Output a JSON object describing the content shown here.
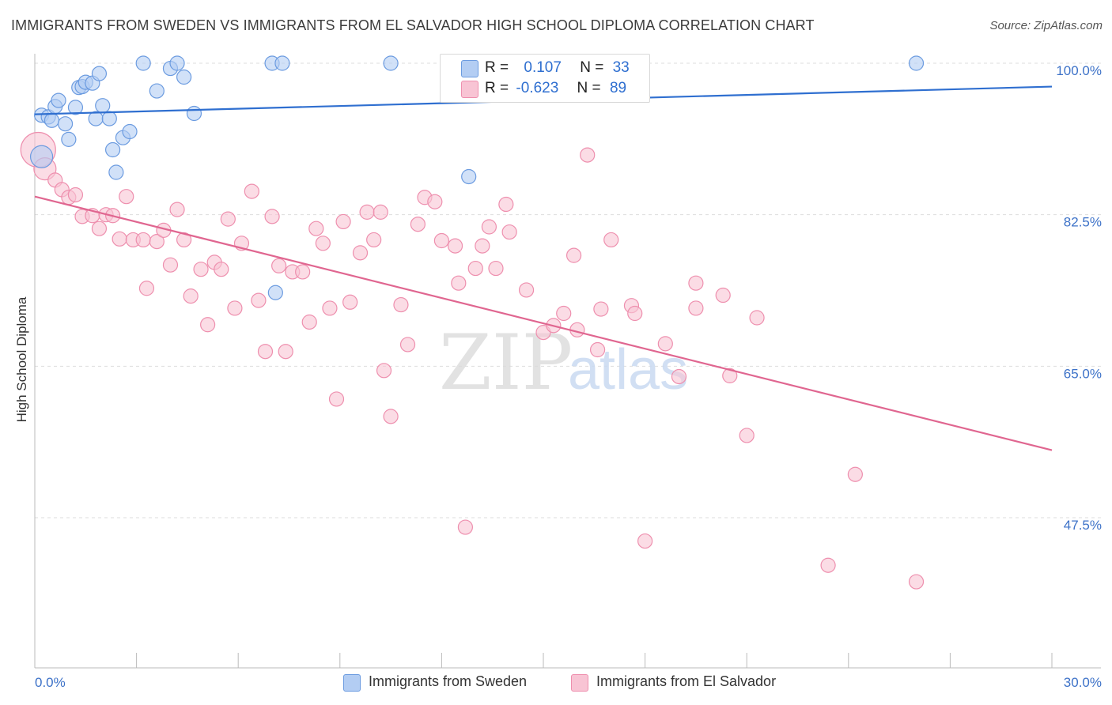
{
  "title": "IMMIGRANTS FROM SWEDEN VS IMMIGRANTS FROM EL SALVADOR HIGH SCHOOL DIPLOMA CORRELATION CHART",
  "source": "Source: ZipAtlas.com",
  "watermark": {
    "zip": "ZIP",
    "atlas": "atlas"
  },
  "colors": {
    "sweden_fill": "#b3cdf3",
    "sweden_stroke": "#6b9be0",
    "sweden_line": "#2f6fd0",
    "elsalvador_fill": "#f8c4d4",
    "elsalvador_stroke": "#ee8fae",
    "elsalvador_line": "#e06690",
    "axis_label": "#3d72c8",
    "grid": "#dddddd"
  },
  "legend": {
    "rows": [
      {
        "r_label": "R =",
        "r_value": "0.107",
        "n_label": "N =",
        "n_value": "33"
      },
      {
        "r_label": "R =",
        "r_value": "-0.623",
        "n_label": "N =",
        "n_value": "89"
      }
    ]
  },
  "bottom_legend": [
    "Immigrants from Sweden",
    "Immigrants from El Salvador"
  ],
  "chart_data": {
    "type": "scatter",
    "title": "IMMIGRANTS FROM SWEDEN VS IMMIGRANTS FROM EL SALVADOR HIGH SCHOOL DIPLOMA CORRELATION CHART",
    "xlabel": "",
    "ylabel": "High School Diploma",
    "xlim": [
      0,
      30
    ],
    "ylim": [
      33,
      101
    ],
    "x_tick_labels": [
      "0.0%",
      "30.0%"
    ],
    "y_ticks": [
      47.5,
      65.0,
      82.5,
      100.0
    ],
    "y_tick_labels": [
      "47.5%",
      "65.0%",
      "82.5%",
      "100.0%"
    ],
    "grid": true,
    "legend_position": "top-center",
    "series": [
      {
        "name": "Immigrants from Sweden",
        "r": 0.107,
        "n": 33,
        "trend": {
          "x": [
            0,
            30
          ],
          "y": [
            94.1,
            97.3
          ]
        },
        "points": [
          [
            0.2,
            89.2,
            14
          ],
          [
            0.2,
            94.0,
            9
          ],
          [
            0.4,
            93.8,
            9
          ],
          [
            0.5,
            93.4,
            9
          ],
          [
            0.6,
            95.0,
            9
          ],
          [
            0.7,
            95.7,
            9
          ],
          [
            0.9,
            93.0,
            9
          ],
          [
            1.0,
            91.2,
            9
          ],
          [
            1.2,
            94.9,
            9
          ],
          [
            1.3,
            97.2,
            9
          ],
          [
            1.4,
            97.3,
            9
          ],
          [
            1.5,
            97.8,
            9
          ],
          [
            1.7,
            97.7,
            9
          ],
          [
            1.8,
            93.6,
            9
          ],
          [
            1.9,
            98.8,
            9
          ],
          [
            2.0,
            95.1,
            9
          ],
          [
            2.2,
            93.6,
            9
          ],
          [
            2.3,
            90.0,
            9
          ],
          [
            2.4,
            87.4,
            9
          ],
          [
            2.6,
            91.4,
            9
          ],
          [
            2.8,
            92.1,
            9
          ],
          [
            3.2,
            100.0,
            9
          ],
          [
            3.6,
            96.8,
            9
          ],
          [
            4.0,
            99.4,
            9
          ],
          [
            4.2,
            100.0,
            9
          ],
          [
            4.4,
            98.4,
            9
          ],
          [
            4.7,
            94.2,
            9
          ],
          [
            7.0,
            100.0,
            9
          ],
          [
            7.3,
            100.0,
            9
          ],
          [
            7.1,
            73.5,
            9
          ],
          [
            10.5,
            100.0,
            9
          ],
          [
            12.8,
            86.9,
            9
          ],
          [
            26.0,
            100.0,
            9
          ]
        ]
      },
      {
        "name": "Immigrants from El Salvador",
        "r": -0.623,
        "n": 89,
        "trend": {
          "x": [
            0,
            30
          ],
          "y": [
            84.6,
            55.3
          ]
        },
        "points": [
          [
            0.1,
            90.0,
            22
          ],
          [
            0.3,
            87.8,
            14
          ],
          [
            0.6,
            86.5,
            9
          ],
          [
            0.8,
            85.4,
            9
          ],
          [
            1.0,
            84.5,
            9
          ],
          [
            1.2,
            84.8,
            9
          ],
          [
            1.4,
            82.3,
            9
          ],
          [
            1.7,
            82.4,
            9
          ],
          [
            1.9,
            80.9,
            9
          ],
          [
            2.1,
            82.5,
            9
          ],
          [
            2.3,
            82.4,
            9
          ],
          [
            2.5,
            79.7,
            9
          ],
          [
            2.7,
            84.6,
            9
          ],
          [
            2.9,
            79.6,
            9
          ],
          [
            3.2,
            79.6,
            9
          ],
          [
            3.3,
            74.0,
            9
          ],
          [
            3.6,
            79.4,
            9
          ],
          [
            3.8,
            80.7,
            9
          ],
          [
            4.0,
            76.7,
            9
          ],
          [
            4.2,
            83.1,
            9
          ],
          [
            4.4,
            79.6,
            9
          ],
          [
            4.6,
            73.1,
            9
          ],
          [
            4.9,
            76.2,
            9
          ],
          [
            5.1,
            69.8,
            9
          ],
          [
            5.3,
            77.0,
            9
          ],
          [
            5.5,
            76.2,
            9
          ],
          [
            5.7,
            82.0,
            9
          ],
          [
            5.9,
            71.7,
            9
          ],
          [
            6.1,
            79.2,
            9
          ],
          [
            6.4,
            85.2,
            9
          ],
          [
            6.6,
            72.6,
            9
          ],
          [
            6.8,
            66.7,
            9
          ],
          [
            7.0,
            82.3,
            9
          ],
          [
            7.2,
            76.6,
            9
          ],
          [
            7.4,
            66.7,
            9
          ],
          [
            7.6,
            75.9,
            9
          ],
          [
            7.9,
            75.9,
            9
          ],
          [
            8.1,
            70.1,
            9
          ],
          [
            8.3,
            80.9,
            9
          ],
          [
            8.5,
            79.2,
            9
          ],
          [
            8.7,
            71.7,
            9
          ],
          [
            8.9,
            61.2,
            9
          ],
          [
            9.1,
            81.7,
            9
          ],
          [
            9.3,
            72.4,
            9
          ],
          [
            9.6,
            78.1,
            9
          ],
          [
            9.8,
            82.8,
            9
          ],
          [
            10.0,
            79.6,
            9
          ],
          [
            10.2,
            82.8,
            9
          ],
          [
            10.3,
            64.5,
            9
          ],
          [
            10.5,
            59.2,
            9
          ],
          [
            10.8,
            72.1,
            9
          ],
          [
            11.0,
            67.5,
            9
          ],
          [
            11.3,
            81.4,
            9
          ],
          [
            11.5,
            84.5,
            9
          ],
          [
            11.8,
            84.0,
            9
          ],
          [
            12.0,
            79.5,
            9
          ],
          [
            12.4,
            78.9,
            9
          ],
          [
            12.5,
            74.6,
            9
          ],
          [
            12.7,
            46.4,
            9
          ],
          [
            13.0,
            76.3,
            9
          ],
          [
            13.2,
            78.9,
            9
          ],
          [
            13.4,
            81.1,
            9
          ],
          [
            13.6,
            76.3,
            9
          ],
          [
            13.9,
            83.7,
            9
          ],
          [
            14.0,
            80.5,
            9
          ],
          [
            14.5,
            73.8,
            9
          ],
          [
            15.0,
            68.9,
            9
          ],
          [
            15.3,
            69.7,
            9
          ],
          [
            15.6,
            71.1,
            9
          ],
          [
            15.9,
            77.8,
            9
          ],
          [
            16.0,
            69.2,
            9
          ],
          [
            16.3,
            89.4,
            9
          ],
          [
            16.6,
            66.9,
            9
          ],
          [
            16.7,
            71.6,
            9
          ],
          [
            17.0,
            79.6,
            9
          ],
          [
            17.6,
            72.0,
            9
          ],
          [
            17.7,
            71.1,
            9
          ],
          [
            18.0,
            44.8,
            9
          ],
          [
            18.6,
            67.6,
            9
          ],
          [
            19.0,
            63.8,
            9
          ],
          [
            19.5,
            71.7,
            9
          ],
          [
            19.5,
            74.6,
            9
          ],
          [
            20.3,
            73.2,
            9
          ],
          [
            20.5,
            63.9,
            9
          ],
          [
            21.0,
            57.0,
            9
          ],
          [
            21.3,
            70.6,
            9
          ],
          [
            23.4,
            42.0,
            9
          ],
          [
            24.2,
            52.5,
            9
          ],
          [
            26.0,
            40.1,
            9
          ]
        ]
      }
    ]
  }
}
